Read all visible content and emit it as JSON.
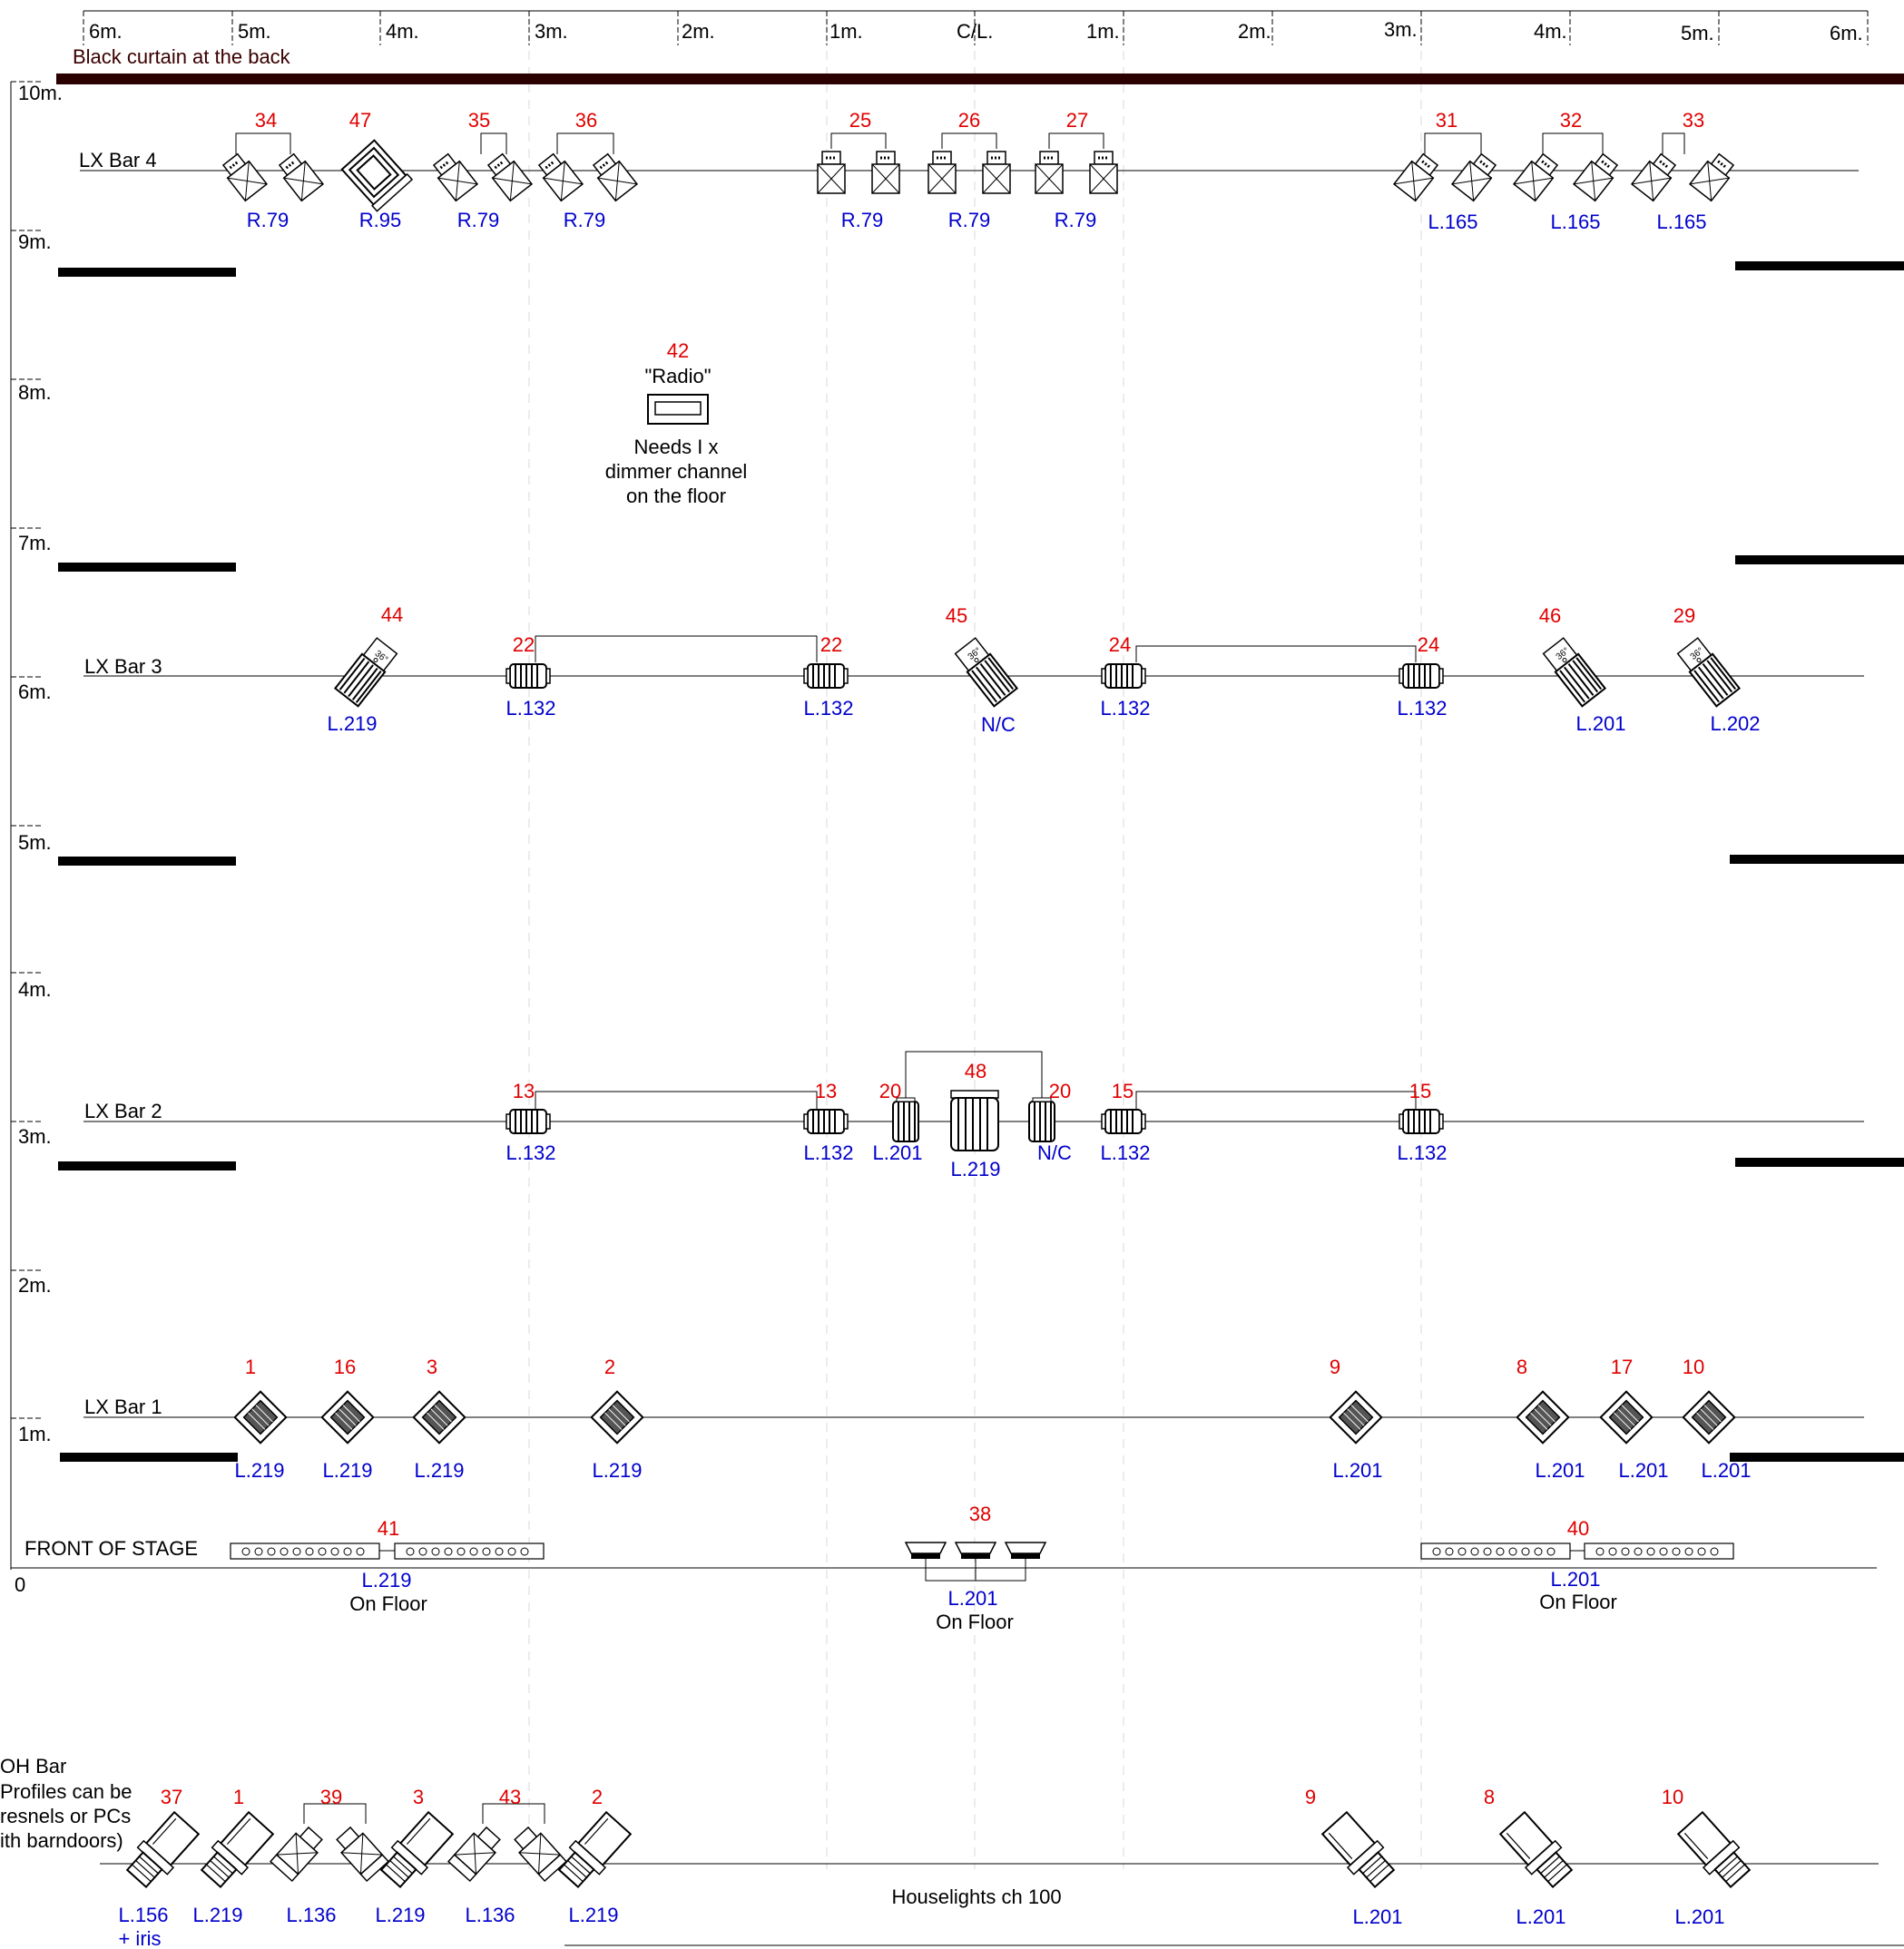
{
  "top_ruler": [
    "6m.",
    "5m.",
    "4m.",
    "3m.",
    "2m.",
    "1m.",
    "C/L.",
    "1m.",
    "2m.",
    "3m.",
    "4m.",
    "5m.",
    "6m."
  ],
  "left_ruler": [
    "10m.",
    "9m.",
    "8m.",
    "7m.",
    "6m.",
    "5m.",
    "4m.",
    "3m.",
    "2m.",
    "1m.",
    "0"
  ],
  "back_curtain_label": "Black curtain at the back",
  "front_of_stage_label": "FRONT OF STAGE",
  "houselights_label": "Houselights ch 100",
  "radio": {
    "channel": "42",
    "name": "\"Radio\"",
    "note_lines": [
      "Needs I x",
      "dimmer channel",
      "on the floor"
    ]
  },
  "bars": [
    {
      "name": "LX Bar 4",
      "fixtures": [
        {
          "ch": "34",
          "gel": "R.79",
          "type": "profile"
        },
        {
          "ch": "47",
          "gel": "R.95",
          "type": "profile"
        },
        {
          "ch": "35",
          "gel": "R.79",
          "type": "profile"
        },
        {
          "ch": "36",
          "gel": "R.79",
          "type": "profile"
        },
        {
          "ch": "25",
          "gel": "R.79",
          "type": "profile"
        },
        {
          "ch": "26",
          "gel": "R.79",
          "type": "profile"
        },
        {
          "ch": "27",
          "gel": "R.79",
          "type": "profile"
        },
        {
          "ch": "31",
          "gel": "L.165",
          "type": "profile"
        },
        {
          "ch": "32",
          "gel": "L.165",
          "type": "profile"
        },
        {
          "ch": "33",
          "gel": "L.165",
          "type": "profile"
        }
      ]
    },
    {
      "name": "LX Bar 3",
      "fixtures": [
        {
          "ch": "44",
          "gel": "L.219",
          "type": "profile-36"
        },
        {
          "ch": "22",
          "gel": "L.132",
          "type": "fresnel"
        },
        {
          "ch": "22",
          "gel": "L.132",
          "type": "fresnel"
        },
        {
          "ch": "45",
          "gel": "N/C",
          "type": "profile-36"
        },
        {
          "ch": "24",
          "gel": "L.132",
          "type": "fresnel"
        },
        {
          "ch": "24",
          "gel": "L.132",
          "type": "fresnel"
        },
        {
          "ch": "46",
          "gel": "L.201",
          "type": "profile-36"
        },
        {
          "ch": "29",
          "gel": "L.202",
          "type": "profile-36"
        }
      ]
    },
    {
      "name": "LX Bar 2",
      "fixtures": [
        {
          "ch": "13",
          "gel": "L.132",
          "type": "fresnel"
        },
        {
          "ch": "13",
          "gel": "L.132",
          "type": "fresnel"
        },
        {
          "ch": "20",
          "gel": "L.201",
          "type": "fresnel"
        },
        {
          "ch": "48",
          "gel": "L.219",
          "type": "fresnel-large"
        },
        {
          "ch": "20",
          "gel": "N/C",
          "type": "fresnel"
        },
        {
          "ch": "15",
          "gel": "L.132",
          "type": "fresnel"
        },
        {
          "ch": "15",
          "gel": "L.132",
          "type": "fresnel"
        }
      ]
    },
    {
      "name": "LX Bar 1",
      "fixtures": [
        {
          "ch": "1",
          "gel": "L.219",
          "type": "fresnel"
        },
        {
          "ch": "16",
          "gel": "L.219",
          "type": "fresnel"
        },
        {
          "ch": "3",
          "gel": "L.219",
          "type": "fresnel"
        },
        {
          "ch": "2",
          "gel": "L.219",
          "type": "fresnel"
        },
        {
          "ch": "9",
          "gel": "L.201",
          "type": "fresnel"
        },
        {
          "ch": "8",
          "gel": "L.201",
          "type": "fresnel"
        },
        {
          "ch": "17",
          "gel": "L.201",
          "type": "fresnel"
        },
        {
          "ch": "10",
          "gel": "L.201",
          "type": "fresnel"
        }
      ]
    }
  ],
  "floor_units": [
    {
      "ch": "41",
      "gel": "L.219",
      "note": "On Floor",
      "type": "batten"
    },
    {
      "ch": "38",
      "gel": "L.201",
      "note": "On Floor",
      "type": "flood"
    },
    {
      "ch": "40",
      "gel": "L.201",
      "note": "On Floor",
      "type": "batten"
    }
  ],
  "foh_bar": {
    "name_lines": [
      "OH Bar",
      "Profiles can be",
      "resnels or PCs",
      "ith barndoors)"
    ],
    "fixtures": [
      {
        "ch": "37",
        "gel_lines": [
          "L.156",
          "+ iris"
        ],
        "type": "profile"
      },
      {
        "ch": "1",
        "gel_lines": [
          "L.219"
        ],
        "type": "profile"
      },
      {
        "ch": "39",
        "gel_lines": [
          "L.136"
        ],
        "type": "profile"
      },
      {
        "ch": "3",
        "gel_lines": [
          "L.219"
        ],
        "type": "profile"
      },
      {
        "ch": "43",
        "gel_lines": [
          "L.136"
        ],
        "type": "profile"
      },
      {
        "ch": "2",
        "gel_lines": [
          "L.219"
        ],
        "type": "profile"
      },
      {
        "ch": "9",
        "gel_lines": [
          "L.201"
        ],
        "type": "profile"
      },
      {
        "ch": "8",
        "gel_lines": [
          "L.201"
        ],
        "type": "profile"
      },
      {
        "ch": "10",
        "gel_lines": [
          "L.201"
        ],
        "type": "profile"
      }
    ]
  },
  "colors": {
    "channel": "#e00000",
    "gel": "#0000cc",
    "line": "#000000",
    "curtain": "#2a0000",
    "grid": "#cfcfcf"
  }
}
